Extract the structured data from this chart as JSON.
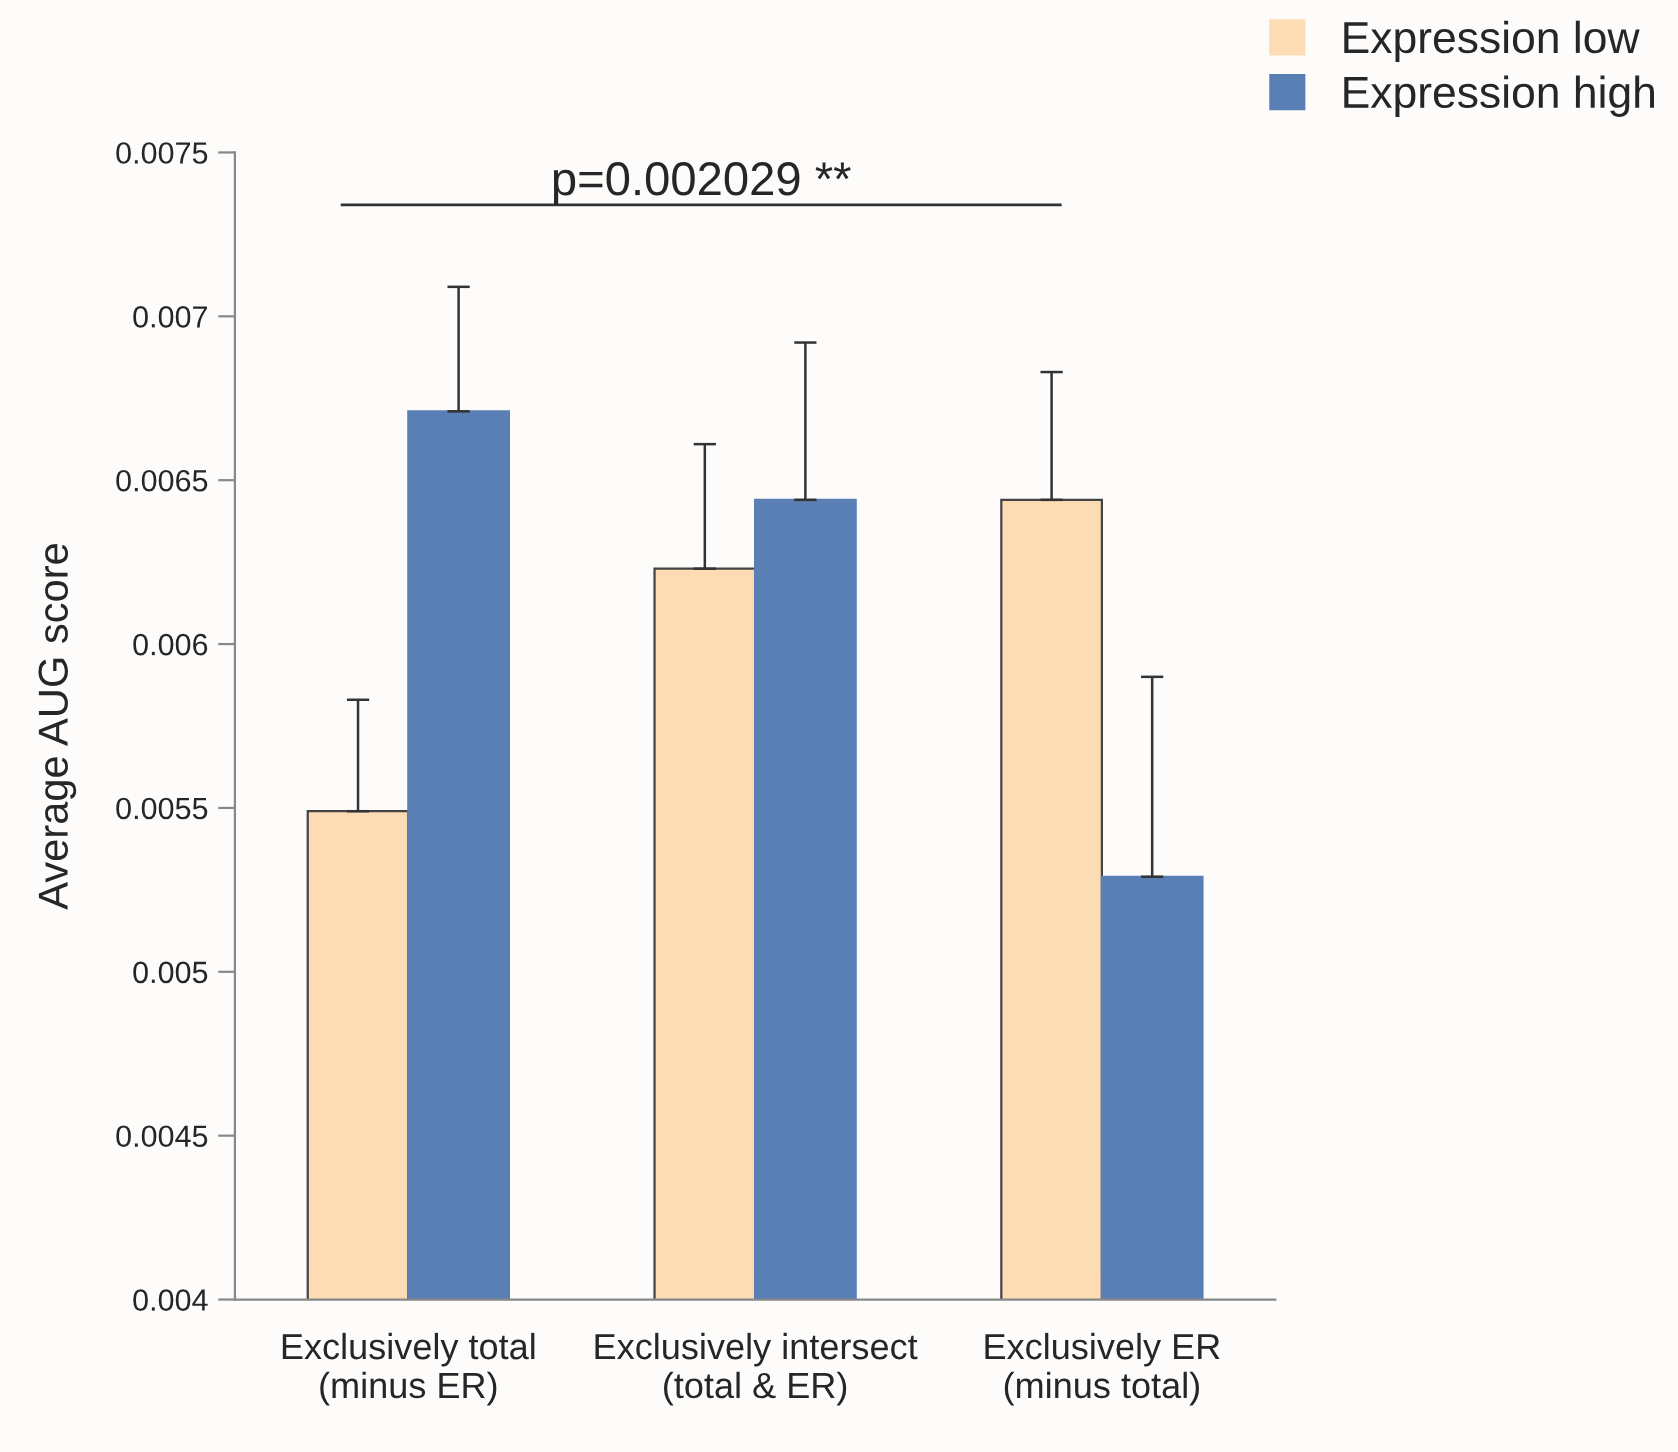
{
  "chart_data": {
    "type": "bar",
    "ylabel": "Average AUG score",
    "categories": [
      "Exclusively total\n(minus ER)",
      "Exclusively intersect\n(total & ER)",
      "Exclusively ER\n(minus total)"
    ],
    "series": [
      {
        "name": "Expression low",
        "color": "#fddbb4",
        "values": [
          0.00549,
          0.00623,
          0.00644
        ],
        "errors": [
          [
            0.00549,
            0.00583
          ],
          [
            0.00623,
            0.00661
          ],
          [
            0.00644,
            0.00683
          ]
        ]
      },
      {
        "name": "Expression high",
        "color": "#5a7fb5",
        "values": [
          0.00671,
          0.00644,
          0.00529
        ],
        "errors": [
          [
            0.00671,
            0.00709
          ],
          [
            0.00644,
            0.00692
          ],
          [
            0.00529,
            0.0059
          ]
        ]
      }
    ],
    "ylim": [
      0.004,
      0.0075
    ],
    "yticks": [
      0.004,
      0.0045,
      0.005,
      0.0055,
      0.006,
      0.0065,
      0.007,
      0.0075
    ],
    "ref_lines": [
      {
        "axis": "y",
        "value": 0.00734,
        "color": "#333333"
      }
    ],
    "annotations": [
      "p=0.002029 **"
    ],
    "legend": "top right",
    "grid": false
  }
}
